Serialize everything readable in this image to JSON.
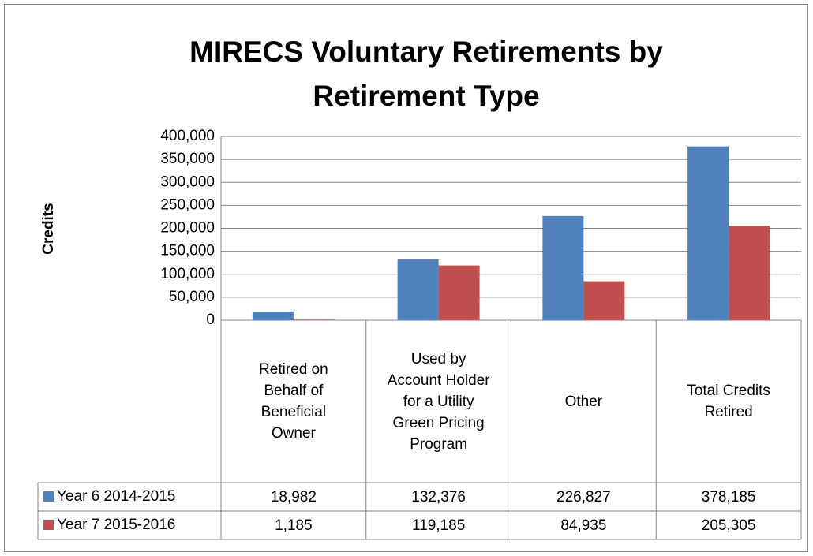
{
  "chart_data": {
    "type": "bar",
    "title": "MIRECS Voluntary Retirements by Retirement Type",
    "y_label": "Credits",
    "categories": [
      "Retired on Behalf of Beneficial Owner",
      "Used by Account Holder for a Utility Green Pricing Program",
      "Other",
      "Total Credits Retired"
    ],
    "series": [
      {
        "name": "Year 6 2014-2015",
        "color": "#4f81bd",
        "values": [
          18982,
          132376,
          226827,
          378185
        ],
        "value_labels": [
          "18,982",
          "132,376",
          "226,827",
          "378,185"
        ]
      },
      {
        "name": "Year 7 2015-2016",
        "color": "#c0504d",
        "values": [
          1185,
          119185,
          84935,
          205305
        ],
        "value_labels": [
          "1,185",
          "119,185",
          "84,935",
          "205,305"
        ]
      }
    ],
    "ylim": [
      0,
      400000
    ],
    "yticks": [
      0,
      {
        "value": 50000,
        "label": "50,000"
      },
      {
        "value": 100000,
        "label": "100,000"
      },
      {
        "value": 150000,
        "label": "150,000"
      },
      {
        "value": 200000,
        "label": "200,000"
      },
      {
        "value": 250000,
        "label": "250,000"
      },
      {
        "value": 300000,
        "label": "300,000"
      },
      {
        "value": 350000,
        "label": "350,000"
      },
      {
        "value": 400000,
        "label": "400,000"
      }
    ],
    "grid": true
  }
}
